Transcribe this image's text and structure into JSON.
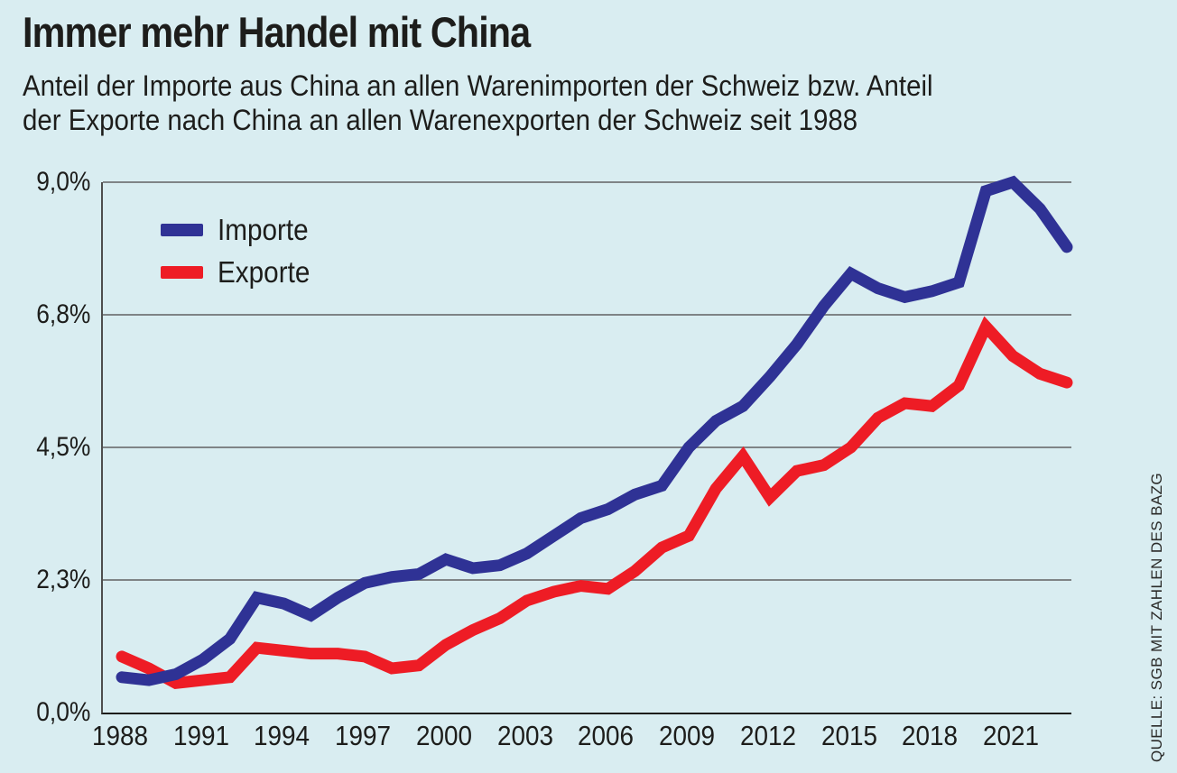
{
  "header": {
    "title": "Immer mehr Handel mit China",
    "subtitle_lines": [
      "Anteil der Importe aus China an allen Warenimporten der Schweiz bzw. Anteil",
      "der Exporte nach China an allen Warenexporten der Schweiz seit 1988"
    ]
  },
  "source": "QUELLE: SGB MIT ZAHLEN DES BAZG",
  "colors": {
    "background": "#d9edf1",
    "importe": "#2f3295",
    "exporte": "#ee1c25",
    "grid": "#7f8486",
    "axis_left": "#4e4e4e",
    "axis_bottom": "#1d1d1b",
    "text": "#1d1d1b"
  },
  "chart_data": {
    "type": "line",
    "title": "Immer mehr Handel mit China",
    "unit": "%",
    "x": [
      1988,
      1989,
      1990,
      1991,
      1992,
      1993,
      1994,
      1995,
      1996,
      1997,
      1998,
      1999,
      2000,
      2001,
      2002,
      2003,
      2004,
      2005,
      2006,
      2007,
      2008,
      2009,
      2010,
      2011,
      2012,
      2013,
      2014,
      2015,
      2016,
      2017,
      2018,
      2019,
      2020,
      2021,
      2022,
      2023
    ],
    "series": [
      {
        "name": "Importe",
        "color": "#2f3295",
        "values": [
          0.6,
          0.55,
          0.65,
          0.9,
          1.25,
          1.95,
          1.85,
          1.65,
          1.95,
          2.2,
          2.3,
          2.35,
          2.6,
          2.45,
          2.5,
          2.7,
          3.0,
          3.3,
          3.45,
          3.7,
          3.85,
          4.5,
          4.95,
          5.2,
          5.7,
          6.25,
          6.9,
          7.45,
          7.2,
          7.05,
          7.15,
          7.3,
          8.85,
          9.0,
          8.55,
          7.9
        ]
      },
      {
        "name": "Exporte",
        "color": "#ee1c25",
        "values": [
          0.95,
          0.75,
          0.5,
          0.55,
          0.6,
          1.1,
          1.05,
          1.0,
          1.0,
          0.95,
          0.75,
          0.8,
          1.15,
          1.4,
          1.6,
          1.9,
          2.05,
          2.15,
          2.1,
          2.4,
          2.8,
          3.0,
          3.8,
          4.35,
          3.65,
          4.1,
          4.2,
          4.5,
          5.0,
          5.25,
          5.2,
          5.55,
          6.55,
          6.05,
          5.75,
          5.6
        ]
      }
    ],
    "ylim": [
      0,
      9
    ],
    "y_ticks": [
      {
        "label": "9,0%",
        "value": 9
      },
      {
        "label": "6,8%",
        "value": 6.75
      },
      {
        "label": "4,5%",
        "value": 4.5
      },
      {
        "label": "2,3%",
        "value": 2.25
      },
      {
        "label": "0,0%",
        "value": 0
      }
    ],
    "x_ticks": [
      {
        "label": "1988",
        "year": 1988
      },
      {
        "label": "1991",
        "year": 1991
      },
      {
        "label": "1994",
        "year": 1994
      },
      {
        "label": "1997",
        "year": 1997
      },
      {
        "label": "2000",
        "year": 2000
      },
      {
        "label": "2003",
        "year": 2003
      },
      {
        "label": "2006",
        "year": 2006
      },
      {
        "label": "2009",
        "year": 2009
      },
      {
        "label": "2012",
        "year": 2012
      },
      {
        "label": "2015",
        "year": 2015
      },
      {
        "label": "2018",
        "year": 2018
      },
      {
        "label": "2021",
        "year": 2021
      }
    ],
    "grid": "horizontal",
    "legend_position": "top-left"
  }
}
